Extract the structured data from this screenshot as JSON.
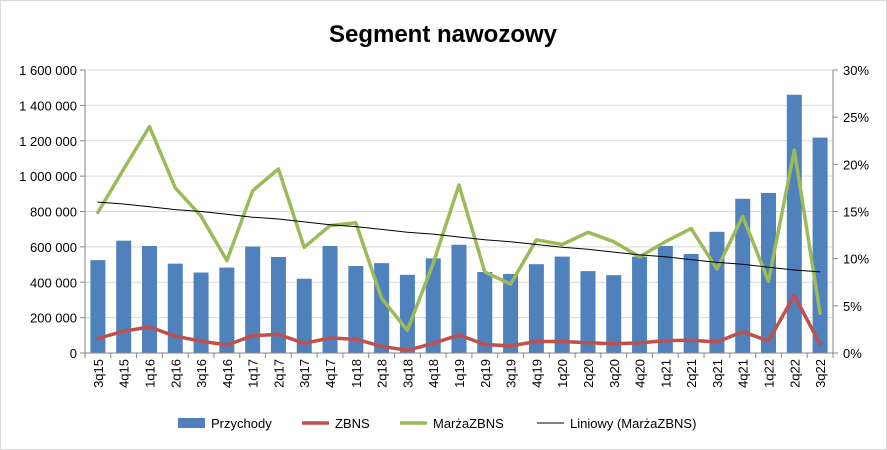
{
  "chart_data": {
    "type": "bar",
    "title": "Segment nawozowy",
    "categories": [
      "3q15",
      "4q15",
      "1q16",
      "2q16",
      "3q16",
      "4q16",
      "1q17",
      "2q17",
      "3q17",
      "4q17",
      "1q18",
      "2q18",
      "3q18",
      "4q18",
      "1q19",
      "2q19",
      "3q19",
      "4q19",
      "1q20",
      "2q20",
      "3q20",
      "4q20",
      "1q21",
      "2q21",
      "3q21",
      "4q21",
      "1q22",
      "2q22",
      "3q22"
    ],
    "y_left": {
      "min": 0,
      "max": 1600000,
      "step": 200000,
      "tick_labels": [
        "0",
        "200 000",
        "400 000",
        "600 000",
        "800 000",
        "1 000 000",
        "1 200 000",
        "1 400 000",
        "1 600 000"
      ]
    },
    "y_right": {
      "min": 0,
      "max": 0.3,
      "step": 0.05,
      "tick_labels": [
        "0%",
        "5%",
        "10%",
        "15%",
        "20%",
        "25%",
        "30%"
      ]
    },
    "grid": "horizontal",
    "legend_position": "bottom",
    "series": [
      {
        "name": "Przychody",
        "kind": "bar",
        "axis": "left",
        "color": "#4f81bd",
        "values": [
          525000,
          635000,
          605000,
          505000,
          455000,
          483000,
          602000,
          543000,
          420000,
          605000,
          492000,
          508000,
          442000,
          535000,
          612000,
          458000,
          447000,
          502000,
          545000,
          463000,
          440000,
          545000,
          605000,
          560000,
          685000,
          872000,
          905000,
          1460000,
          1218000
        ]
      },
      {
        "name": "ZBNS",
        "kind": "line",
        "axis": "left",
        "color": "#c0504d",
        "values": [
          82000,
          123000,
          147000,
          95000,
          67000,
          45000,
          98000,
          105000,
          55000,
          85000,
          78000,
          38000,
          15000,
          55000,
          102000,
          48000,
          40000,
          65000,
          65000,
          58000,
          52000,
          57000,
          70000,
          72000,
          62000,
          120000,
          68000,
          325000,
          50000
        ]
      },
      {
        "name": "MarżaZBNS",
        "kind": "line",
        "axis": "right",
        "color": "#9bbb59",
        "values": [
          0.149,
          0.195,
          0.24,
          0.175,
          0.145,
          0.098,
          0.172,
          0.195,
          0.112,
          0.135,
          0.138,
          0.058,
          0.024,
          0.095,
          0.178,
          0.086,
          0.073,
          0.12,
          0.115,
          0.128,
          0.118,
          0.102,
          0.118,
          0.132,
          0.089,
          0.145,
          0.076,
          0.215,
          0.042
        ]
      },
      {
        "name": "Liniowy (MarżaZBNS)",
        "kind": "trendline",
        "axis": "right",
        "color": "#000000",
        "values": [
          0.16,
          0.158,
          0.155,
          0.152,
          0.15,
          0.147,
          0.144,
          0.142,
          0.139,
          0.136,
          0.134,
          0.131,
          0.128,
          0.126,
          0.123,
          0.12,
          0.118,
          0.115,
          0.112,
          0.11,
          0.107,
          0.104,
          0.102,
          0.099,
          0.096,
          0.094,
          0.091,
          0.088,
          0.086
        ]
      }
    ]
  }
}
